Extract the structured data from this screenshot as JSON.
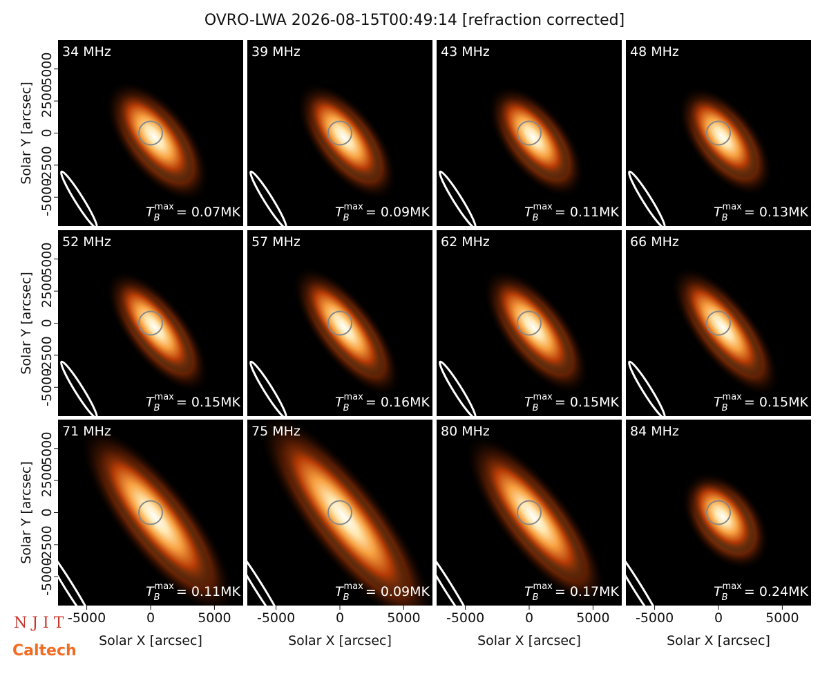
{
  "suptitle": "OVRO-LWA 2026-08-15T00:49:14 [refraction corrected]",
  "logos": [
    "N J I T",
    "Caltech"
  ],
  "chart_data": [
    {
      "type": "image",
      "title": "34 MHz",
      "annotation": [
        "T",
        "B",
        "max",
        "= 0.07MK"
      ],
      "xlim": [
        -7250,
        7250
      ],
      "ylim": [
        -7250,
        7250
      ],
      "ylabel": "Solar Y [arcsec]",
      "yticks": [
        -5000,
        -2500,
        0,
        2500,
        5000
      ]
    },
    {
      "type": "image",
      "title": "39 MHz",
      "annotation": [
        "T",
        "B",
        "max",
        "= 0.09MK"
      ],
      "xlim": [
        -7250,
        7250
      ],
      "ylim": [
        -7250,
        7250
      ]
    },
    {
      "type": "image",
      "title": "43 MHz",
      "annotation": [
        "T",
        "B",
        "max",
        "= 0.11MK"
      ],
      "xlim": [
        -7250,
        7250
      ],
      "ylim": [
        -7250,
        7250
      ]
    },
    {
      "type": "image",
      "title": "48 MHz",
      "annotation": [
        "T",
        "B",
        "max",
        "= 0.13MK"
      ],
      "xlim": [
        -7250,
        7250
      ],
      "ylim": [
        -7250,
        7250
      ]
    },
    {
      "type": "image",
      "title": "52 MHz",
      "annotation": [
        "T",
        "B",
        "max",
        "= 0.15MK"
      ],
      "xlim": [
        -7250,
        7250
      ],
      "ylim": [
        -7250,
        7250
      ],
      "ylabel": "Solar Y [arcsec]",
      "yticks": [
        -5000,
        -2500,
        0,
        2500,
        5000
      ]
    },
    {
      "type": "image",
      "title": "57 MHz",
      "annotation": [
        "T",
        "B",
        "max",
        "= 0.16MK"
      ],
      "xlim": [
        -7250,
        7250
      ],
      "ylim": [
        -7250,
        7250
      ]
    },
    {
      "type": "image",
      "title": "62 MHz",
      "annotation": [
        "T",
        "B",
        "max",
        "= 0.15MK"
      ],
      "xlim": [
        -7250,
        7250
      ],
      "ylim": [
        -7250,
        7250
      ]
    },
    {
      "type": "image",
      "title": "66 MHz",
      "annotation": [
        "T",
        "B",
        "max",
        "= 0.15MK"
      ],
      "xlim": [
        -7250,
        7250
      ],
      "ylim": [
        -7250,
        7250
      ]
    },
    {
      "type": "image",
      "title": "71 MHz",
      "annotation": [
        "T",
        "B",
        "max",
        "= 0.11MK"
      ],
      "xlim": [
        -7250,
        7250
      ],
      "ylim": [
        -7250,
        7250
      ],
      "ylabel": "Solar Y [arcsec]",
      "yticks": [
        -5000,
        -2500,
        0,
        2500,
        5000
      ],
      "xlabel": "Solar X [arcsec]",
      "xticks": [
        -5000,
        0,
        5000
      ]
    },
    {
      "type": "image",
      "title": "75 MHz",
      "annotation": [
        "T",
        "B",
        "max",
        "= 0.09MK"
      ],
      "xlim": [
        -7250,
        7250
      ],
      "ylim": [
        -7250,
        7250
      ],
      "xlabel": "Solar X [arcsec]",
      "xticks": [
        -5000,
        0,
        5000
      ]
    },
    {
      "type": "image",
      "title": "80 MHz",
      "annotation": [
        "T",
        "B",
        "max",
        "= 0.17MK"
      ],
      "xlim": [
        -7250,
        7250
      ],
      "ylim": [
        -7250,
        7250
      ],
      "xlabel": "Solar X [arcsec]",
      "xticks": [
        -5000,
        0,
        5000
      ]
    },
    {
      "type": "image",
      "title": "84 MHz",
      "annotation": [
        "T",
        "B",
        "max",
        "= 0.24MK"
      ],
      "xlim": [
        -7250,
        7250
      ],
      "ylim": [
        -7250,
        7250
      ],
      "xlabel": "Solar X [arcsec]",
      "xticks": [
        -5000,
        0,
        5000
      ]
    }
  ]
}
